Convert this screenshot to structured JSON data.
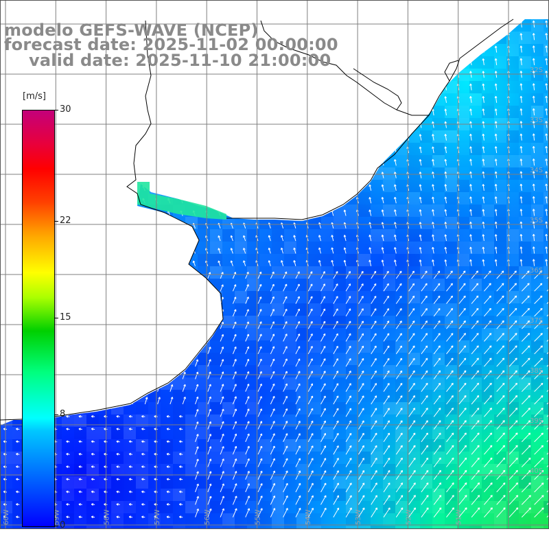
{
  "title": {
    "line1": "modelo GEFS-WAVE (NCEP)",
    "line2": "forecast date: 2025-11-02 00:00:00",
    "line3": "valid date: 2025-11-10 21:00:00"
  },
  "colorbar": {
    "unit": "[m/s]",
    "ticks": [
      {
        "label": "30",
        "value": 30
      },
      {
        "label": "22",
        "value": 22
      },
      {
        "label": "15",
        "value": 15
      },
      {
        "label": "8",
        "value": 8
      },
      {
        "label": "0",
        "value": 0
      }
    ],
    "min": 0,
    "max": 30
  },
  "map": {
    "variable": "wind speed",
    "colors": {
      "ocean_low": "#0033ff",
      "ocean_mid": "#00b4ff",
      "ocean_high": "#00ff80",
      "land": "#ffffff",
      "grid": "#808080",
      "coast": "#000000",
      "arrow": "#ffffff"
    },
    "lat_labels": [
      "32S",
      "33S",
      "34S",
      "35S",
      "36S",
      "37S",
      "38S",
      "39S",
      "40S"
    ],
    "lon_labels": [
      "60W",
      "59W",
      "58W",
      "57W",
      "56W",
      "55W",
      "54W",
      "53W",
      "52W",
      "51W"
    ]
  }
}
